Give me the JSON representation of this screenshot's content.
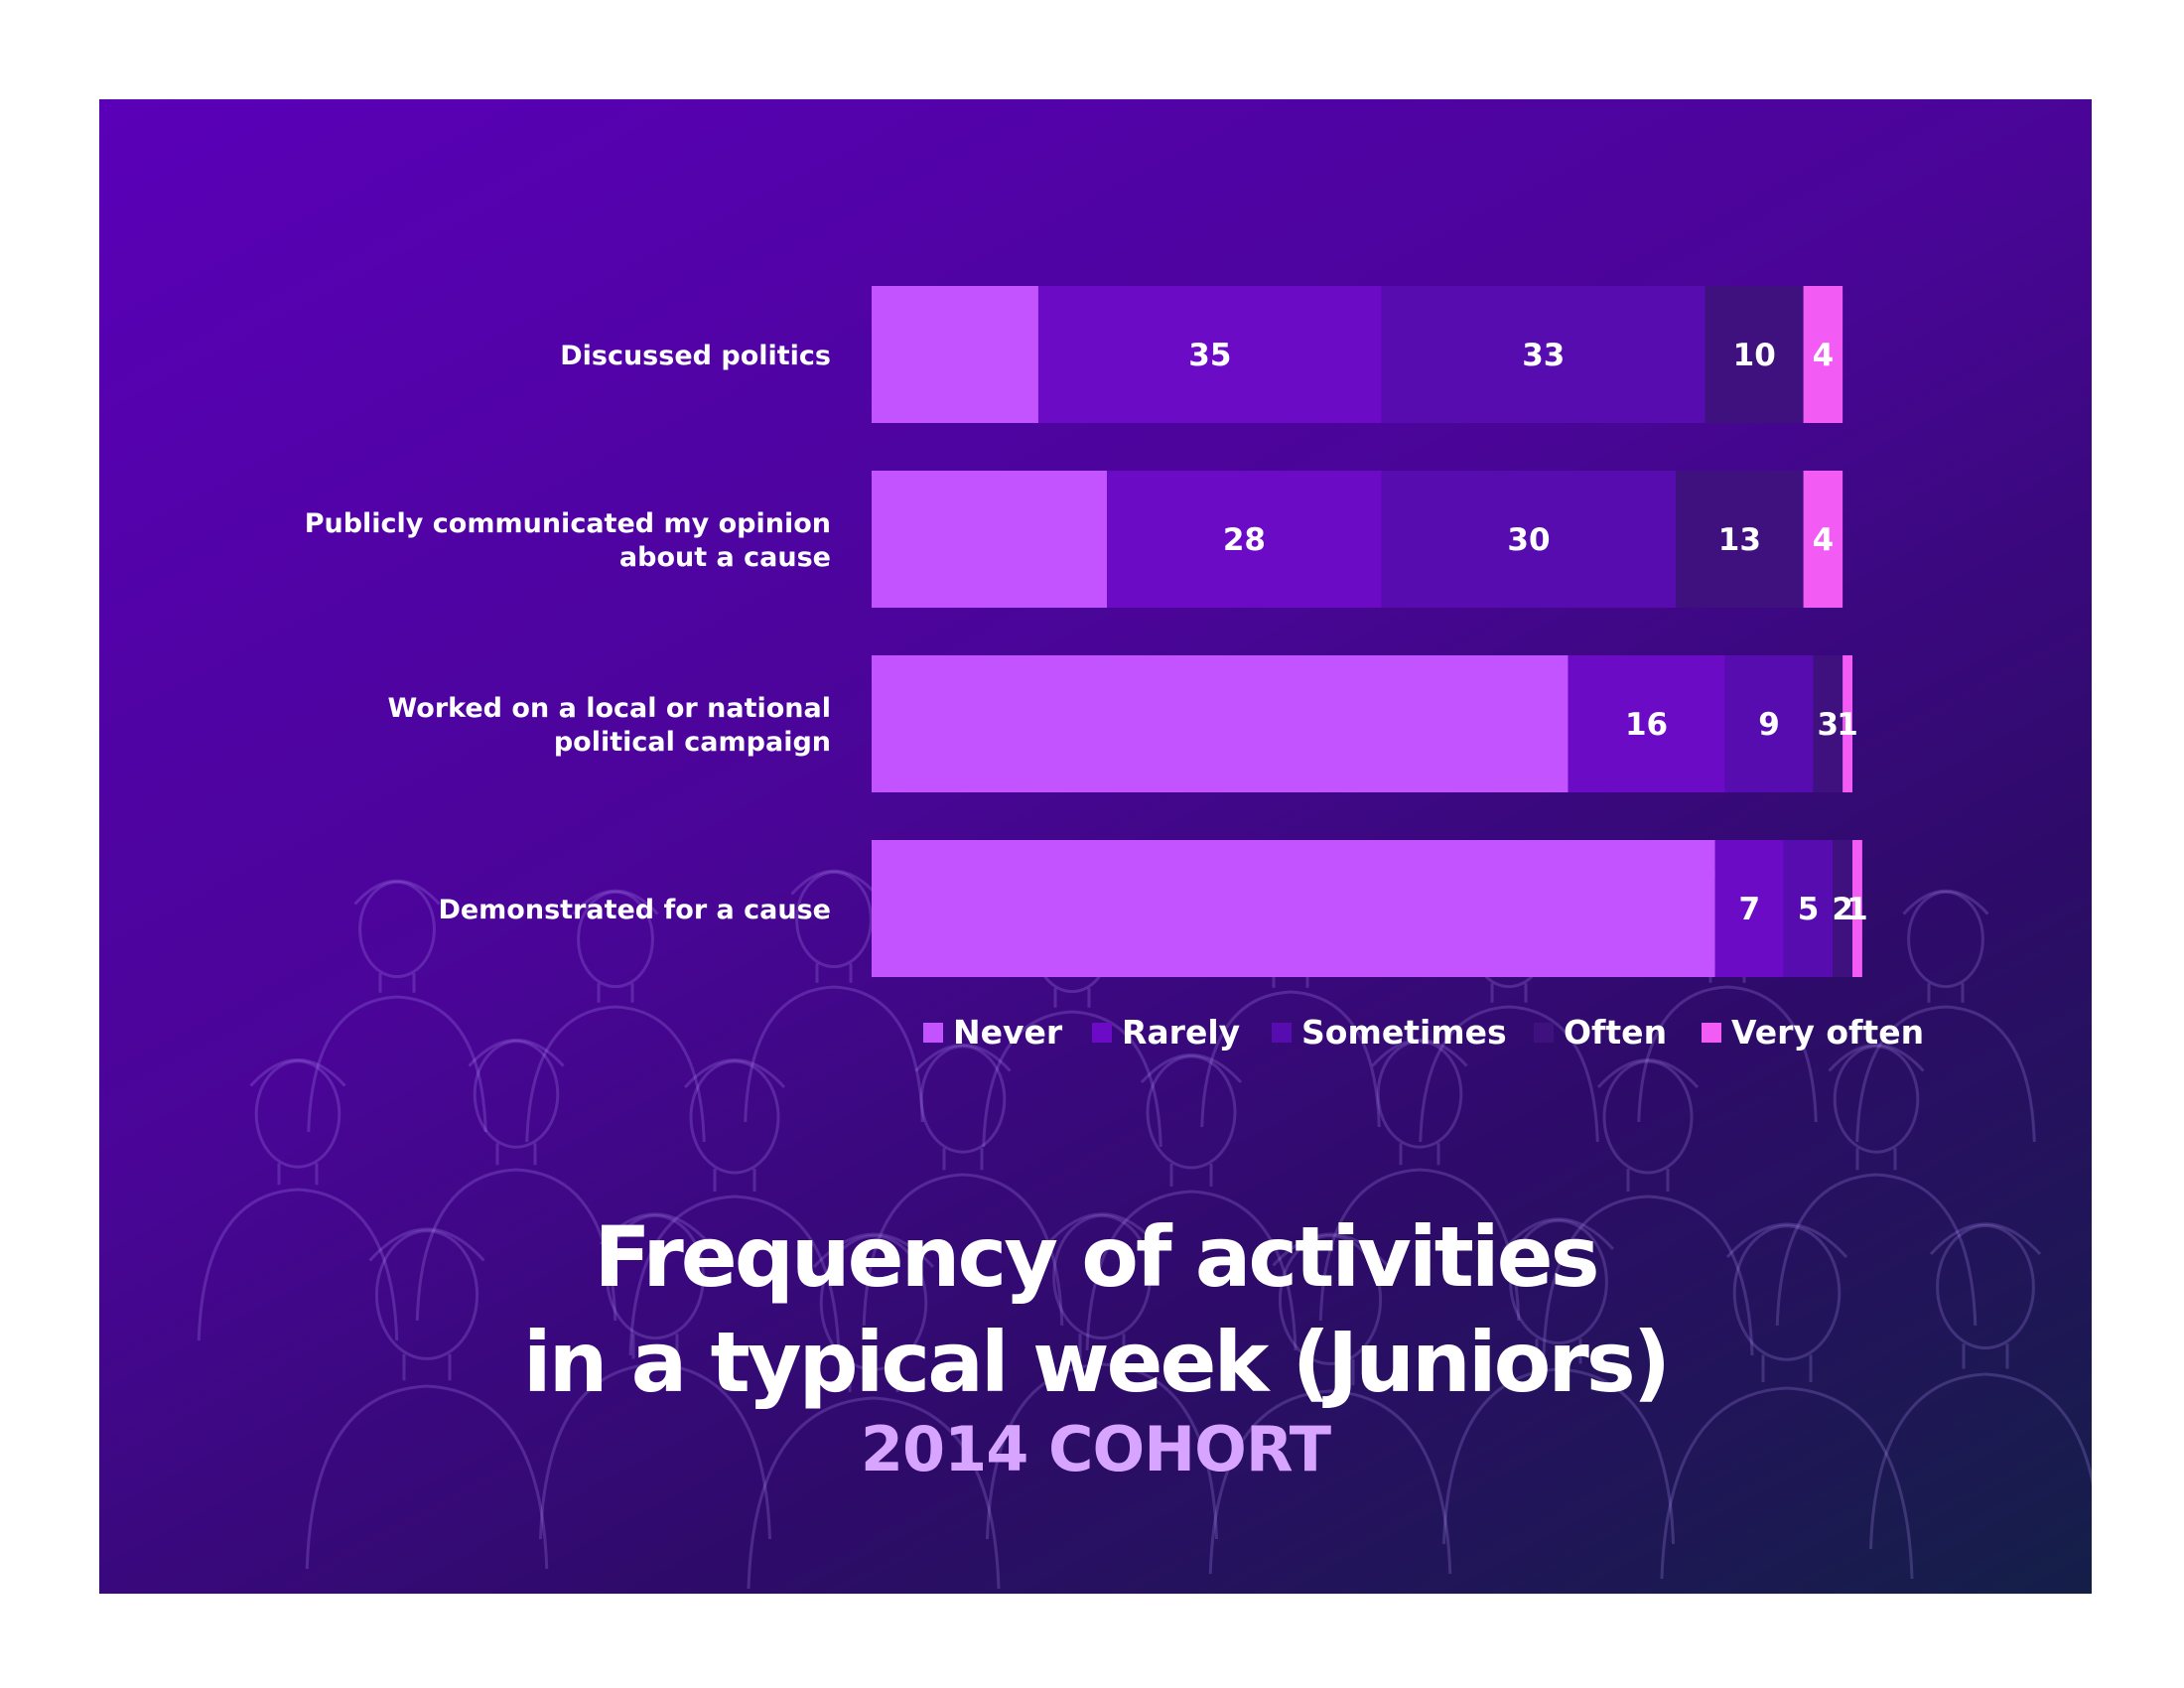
{
  "chart_data": {
    "type": "bar",
    "orientation": "horizontal",
    "stacked": true,
    "title": "Frequency of activities in a typical week (Juniors)",
    "subtitle": "2014 COHORT",
    "categories": [
      [
        "Discussed politics"
      ],
      [
        "Publicly communicated my opinion",
        "about a cause"
      ],
      [
        "Worked on a local or national",
        "political campaign"
      ],
      [
        "Demonstrated for a cause"
      ]
    ],
    "series": [
      {
        "name": "Never",
        "color": "#c353ff",
        "values": [
          17,
          24,
          71,
          86
        ],
        "labeled": false
      },
      {
        "name": "Rarely",
        "color": "#6b0bc6",
        "values": [
          35,
          28,
          16,
          7
        ],
        "labeled": true
      },
      {
        "name": "Sometimes",
        "color": "#560cae",
        "values": [
          33,
          30,
          9,
          5
        ],
        "labeled": true
      },
      {
        "name": "Often",
        "color": "#3f117f",
        "values": [
          10,
          13,
          3,
          2
        ],
        "labeled": true
      },
      {
        "name": "Very often",
        "color": "#f25cf5",
        "values": [
          4,
          4,
          1,
          1
        ],
        "labeled": true
      }
    ],
    "xlim": [
      0,
      100
    ],
    "legend": "bottom"
  },
  "title": {
    "line1": "Frequency of activities",
    "line2": "in a typical week (Juniors)",
    "subtitle": "2014 COHORT"
  },
  "background": {
    "style": "gradient-with-crowd-line-art",
    "colors": [
      "#5a00b8",
      "#141f48"
    ]
  }
}
